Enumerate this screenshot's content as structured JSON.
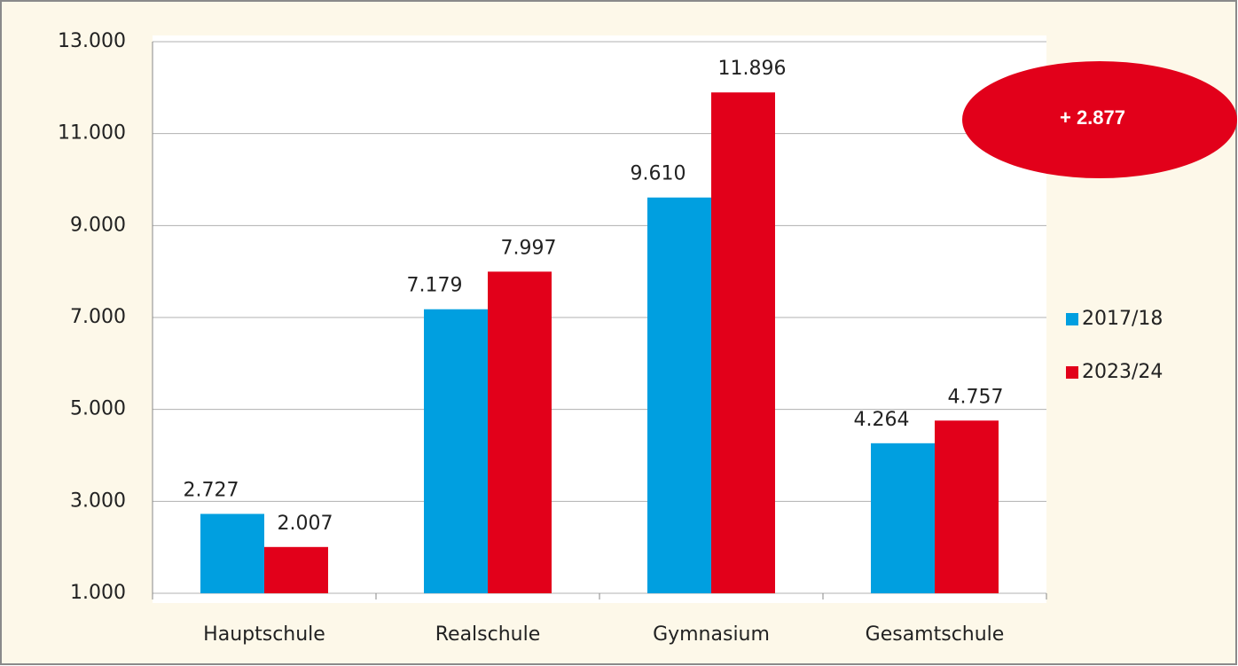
{
  "chart_data": {
    "type": "bar",
    "categories": [
      "Hauptschule",
      "Realschule",
      "Gymnasium",
      "Gesamtschule"
    ],
    "series": [
      {
        "name": "2017/18",
        "color": "#009fe0",
        "values": [
          2727,
          7179,
          9610,
          4264
        ],
        "value_labels": [
          "2.727",
          "7.179",
          "9.610",
          "4.264"
        ]
      },
      {
        "name": "2023/24",
        "color": "#e2001a",
        "values": [
          2007,
          7997,
          11896,
          4757
        ],
        "value_labels": [
          "2.007",
          "7.997",
          "11.896",
          "4.757"
        ]
      }
    ],
    "ylim": [
      1000,
      13000
    ],
    "yticks": [
      {
        "value": 1000,
        "label": "1.000"
      },
      {
        "value": 3000,
        "label": "3.000"
      },
      {
        "value": 5000,
        "label": "5.000"
      },
      {
        "value": 7000,
        "label": "7.000"
      },
      {
        "value": 9000,
        "label": "9.000"
      },
      {
        "value": 11000,
        "label": "11.000"
      },
      {
        "value": 13000,
        "label": "13.000"
      }
    ],
    "grid": true,
    "legend": "right",
    "annotation": "+ 2.877",
    "annotation_color": "#e2001a"
  }
}
